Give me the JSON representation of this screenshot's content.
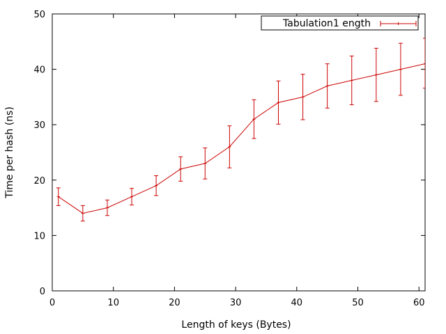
{
  "chart_data": {
    "type": "line",
    "xlabel": "Length of keys (Bytes)",
    "ylabel": "Time per hash (ns)",
    "xlim": [
      0,
      61
    ],
    "ylim": [
      0,
      50
    ],
    "xticks": [
      0,
      10,
      20,
      30,
      40,
      50,
      60
    ],
    "yticks": [
      0,
      10,
      20,
      30,
      40,
      50
    ],
    "legend_position": "top-right",
    "grid": false,
    "series": [
      {
        "name": "Tabulation1 ength",
        "color": "#cc0000",
        "x": [
          1,
          5,
          9,
          13,
          17,
          21,
          25,
          29,
          33,
          37,
          41,
          45,
          49,
          53,
          57,
          61
        ],
        "y": [
          17,
          14,
          15,
          17,
          19,
          22,
          23,
          26,
          31,
          34,
          35,
          37,
          38,
          39,
          40,
          41
        ],
        "ylow": [
          15.4,
          12.6,
          13.6,
          15.5,
          17.2,
          19.8,
          20.2,
          22.2,
          27.5,
          30.1,
          30.9,
          33.0,
          33.6,
          34.2,
          35.3,
          36.6
        ],
        "yhigh": [
          18.6,
          15.4,
          16.4,
          18.5,
          20.8,
          24.2,
          25.8,
          29.8,
          34.5,
          37.9,
          39.1,
          41.0,
          42.4,
          43.8,
          44.7,
          45.6
        ]
      }
    ]
  }
}
